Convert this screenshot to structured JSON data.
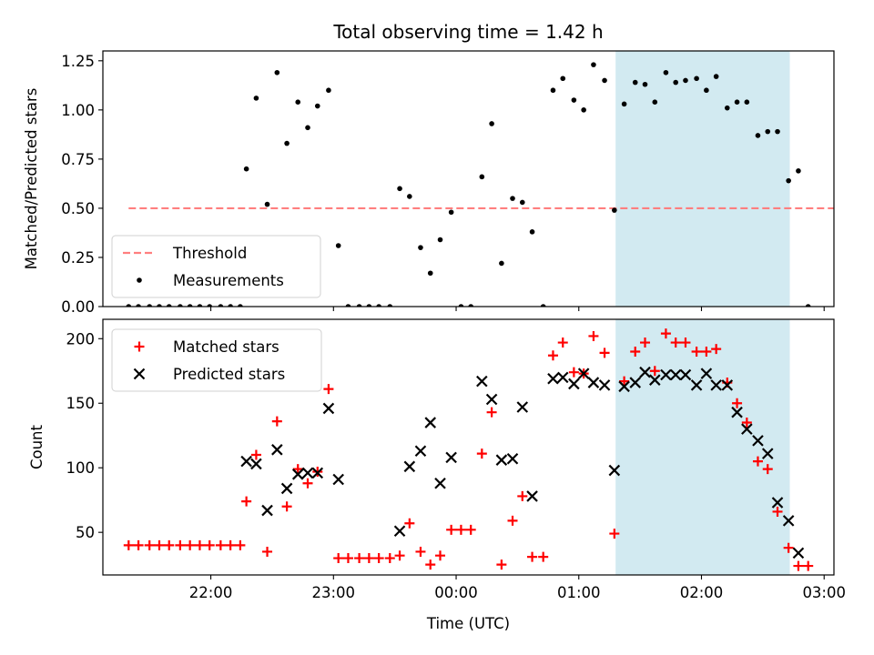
{
  "chart_data": {
    "title": "Total observing time = 1.42 h",
    "xlabel": "Time (UTC)",
    "x_ticks": [
      "22:00",
      "23:00",
      "00:00",
      "01:00",
      "02:00",
      "03:00"
    ],
    "x_tick_values": [
      22.0,
      23.0,
      24.0,
      25.0,
      26.0,
      27.0
    ],
    "x_range": [
      21.12,
      27.08
    ],
    "highlight_band": {
      "x_start": 25.3,
      "x_end": 26.72,
      "color": "#add8e6"
    },
    "panels": [
      {
        "type": "scatter",
        "ylabel": "Matched/Predicted stars",
        "ylim": [
          0,
          1.3
        ],
        "y_ticks": [
          "0.00",
          "0.25",
          "0.50",
          "0.75",
          "1.00",
          "1.25"
        ],
        "y_tick_values": [
          0,
          0.25,
          0.5,
          0.75,
          1.0,
          1.25
        ],
        "legend_position": "lower-left",
        "threshold": {
          "name": "Threshold",
          "value": 0.5,
          "x_start": 21.33,
          "x_end": 27.62,
          "color": "#ff7f7f"
        },
        "series": [
          {
            "name": "Measurements",
            "color": "#000000",
            "points": [
              [
                21.33,
                0
              ],
              [
                21.41,
                0
              ],
              [
                21.5,
                0
              ],
              [
                21.58,
                0
              ],
              [
                21.66,
                0
              ],
              [
                21.75,
                0
              ],
              [
                21.83,
                0
              ],
              [
                21.91,
                0
              ],
              [
                21.99,
                0
              ],
              [
                22.08,
                0
              ],
              [
                22.16,
                0
              ],
              [
                22.24,
                0
              ],
              [
                22.29,
                0.7
              ],
              [
                22.37,
                1.06
              ],
              [
                22.46,
                0.52
              ],
              [
                22.54,
                1.19
              ],
              [
                22.62,
                0.83
              ],
              [
                22.71,
                1.04
              ],
              [
                22.79,
                0.91
              ],
              [
                22.87,
                1.02
              ],
              [
                22.96,
                1.1
              ],
              [
                23.04,
                0.31
              ],
              [
                23.12,
                0
              ],
              [
                23.21,
                0
              ],
              [
                23.29,
                0
              ],
              [
                23.37,
                0
              ],
              [
                23.46,
                0
              ],
              [
                23.54,
                0.6
              ],
              [
                23.62,
                0.56
              ],
              [
                23.71,
                0.3
              ],
              [
                23.79,
                0.17
              ],
              [
                23.87,
                0.34
              ],
              [
                23.96,
                0.48
              ],
              [
                24.04,
                0
              ],
              [
                24.12,
                0
              ],
              [
                24.21,
                0.66
              ],
              [
                24.29,
                0.93
              ],
              [
                24.37,
                0.22
              ],
              [
                24.46,
                0.55
              ],
              [
                24.54,
                0.53
              ],
              [
                24.62,
                0.38
              ],
              [
                24.71,
                0
              ],
              [
                24.79,
                1.1
              ],
              [
                24.87,
                1.16
              ],
              [
                24.96,
                1.05
              ],
              [
                25.04,
                1.0
              ],
              [
                25.12,
                1.23
              ],
              [
                25.21,
                1.15
              ],
              [
                25.29,
                0.49
              ],
              [
                25.37,
                1.03
              ],
              [
                25.46,
                1.14
              ],
              [
                25.54,
                1.13
              ],
              [
                25.62,
                1.04
              ],
              [
                25.71,
                1.19
              ],
              [
                25.79,
                1.14
              ],
              [
                25.87,
                1.15
              ],
              [
                25.96,
                1.16
              ],
              [
                26.04,
                1.1
              ],
              [
                26.12,
                1.17
              ],
              [
                26.21,
                1.01
              ],
              [
                26.29,
                1.04
              ],
              [
                26.37,
                1.04
              ],
              [
                26.46,
                0.87
              ],
              [
                26.54,
                0.89
              ],
              [
                26.62,
                0.89
              ],
              [
                26.71,
                0.64
              ],
              [
                26.79,
                0.69
              ],
              [
                26.87,
                0
              ]
            ]
          }
        ]
      },
      {
        "type": "scatter",
        "ylabel": "Count",
        "ylim": [
          17,
          215
        ],
        "y_ticks": [
          "50",
          "100",
          "150",
          "200"
        ],
        "y_tick_values": [
          50,
          100,
          150,
          200
        ],
        "legend_position": "upper-left",
        "series": [
          {
            "name": "Matched stars",
            "marker": "plus",
            "color": "#ff0000",
            "points": [
              [
                21.33,
                40
              ],
              [
                21.41,
                40
              ],
              [
                21.5,
                40
              ],
              [
                21.58,
                40
              ],
              [
                21.66,
                40
              ],
              [
                21.75,
                40
              ],
              [
                21.83,
                40
              ],
              [
                21.91,
                40
              ],
              [
                21.99,
                40
              ],
              [
                22.08,
                40
              ],
              [
                22.16,
                40
              ],
              [
                22.24,
                40
              ],
              [
                22.29,
                74
              ],
              [
                22.37,
                110
              ],
              [
                22.46,
                35
              ],
              [
                22.54,
                136
              ],
              [
                22.62,
                70
              ],
              [
                22.71,
                99
              ],
              [
                22.79,
                88
              ],
              [
                22.87,
                97
              ],
              [
                22.96,
                161
              ],
              [
                23.04,
                30
              ],
              [
                23.12,
                30
              ],
              [
                23.21,
                30
              ],
              [
                23.29,
                30
              ],
              [
                23.37,
                30
              ],
              [
                23.46,
                30
              ],
              [
                23.54,
                32
              ],
              [
                23.62,
                57
              ],
              [
                23.71,
                35
              ],
              [
                23.79,
                25
              ],
              [
                23.87,
                32
              ],
              [
                23.96,
                52
              ],
              [
                24.04,
                52
              ],
              [
                24.12,
                52
              ],
              [
                24.21,
                111
              ],
              [
                24.29,
                143
              ],
              [
                24.37,
                25
              ],
              [
                24.46,
                59
              ],
              [
                24.54,
                78
              ],
              [
                24.62,
                31
              ],
              [
                24.71,
                31
              ],
              [
                24.79,
                187
              ],
              [
                24.87,
                197
              ],
              [
                24.96,
                174
              ],
              [
                25.04,
                173
              ],
              [
                25.12,
                202
              ],
              [
                25.21,
                189
              ],
              [
                25.29,
                49
              ],
              [
                25.37,
                167
              ],
              [
                25.46,
                190
              ],
              [
                25.54,
                197
              ],
              [
                25.62,
                175
              ],
              [
                25.71,
                204
              ],
              [
                25.79,
                197
              ],
              [
                25.87,
                197
              ],
              [
                25.96,
                190
              ],
              [
                26.04,
                190
              ],
              [
                26.12,
                192
              ],
              [
                26.21,
                166
              ],
              [
                26.29,
                150
              ],
              [
                26.37,
                135
              ],
              [
                26.46,
                105
              ],
              [
                26.54,
                99
              ],
              [
                26.62,
                66
              ],
              [
                26.71,
                38
              ],
              [
                26.79,
                24
              ],
              [
                26.87,
                24
              ]
            ]
          },
          {
            "name": "Predicted stars",
            "marker": "x",
            "color": "#000000",
            "points": [
              [
                22.29,
                105
              ],
              [
                22.37,
                103
              ],
              [
                22.46,
                67
              ],
              [
                22.54,
                114
              ],
              [
                22.62,
                84
              ],
              [
                22.71,
                95
              ],
              [
                22.79,
                96
              ],
              [
                22.87,
                96
              ],
              [
                22.96,
                146
              ],
              [
                23.04,
                91
              ],
              [
                23.54,
                51
              ],
              [
                23.62,
                101
              ],
              [
                23.71,
                113
              ],
              [
                23.79,
                135
              ],
              [
                23.87,
                88
              ],
              [
                23.96,
                108
              ],
              [
                24.21,
                167
              ],
              [
                24.29,
                153
              ],
              [
                24.37,
                106
              ],
              [
                24.46,
                107
              ],
              [
                24.54,
                147
              ],
              [
                24.62,
                78
              ],
              [
                24.79,
                169
              ],
              [
                24.87,
                170
              ],
              [
                24.96,
                165
              ],
              [
                25.04,
                173
              ],
              [
                25.12,
                166
              ],
              [
                25.21,
                164
              ],
              [
                25.29,
                98
              ],
              [
                25.37,
                163
              ],
              [
                25.46,
                166
              ],
              [
                25.54,
                174
              ],
              [
                25.62,
                168
              ],
              [
                25.71,
                172
              ],
              [
                25.79,
                172
              ],
              [
                25.87,
                172
              ],
              [
                25.96,
                164
              ],
              [
                26.04,
                173
              ],
              [
                26.12,
                164
              ],
              [
                26.21,
                164
              ],
              [
                26.29,
                143
              ],
              [
                26.37,
                130
              ],
              [
                26.46,
                121
              ],
              [
                26.54,
                111
              ],
              [
                26.62,
                73
              ],
              [
                26.71,
                59
              ],
              [
                26.79,
                34
              ]
            ]
          }
        ]
      }
    ]
  }
}
